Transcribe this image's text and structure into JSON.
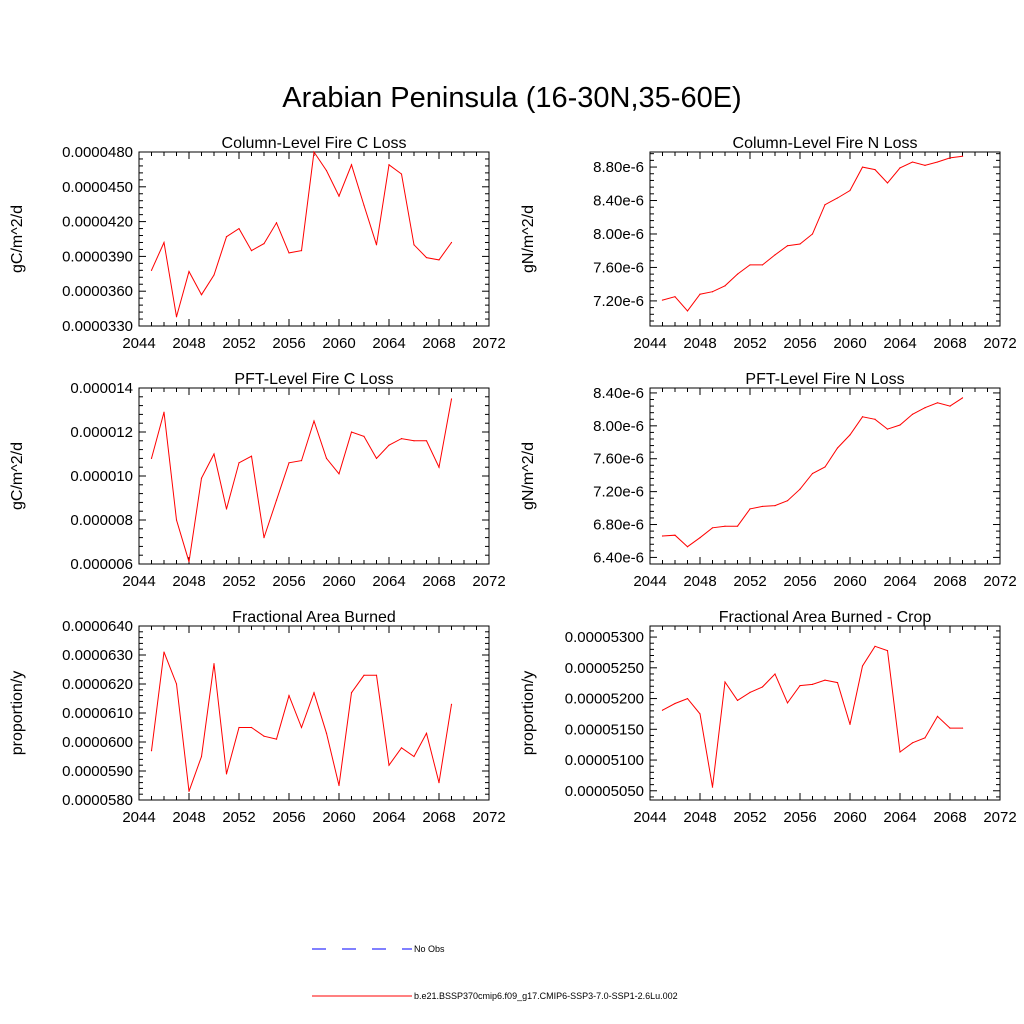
{
  "title": "Arabian Peninsula (16-30N,35-60E)",
  "colors": {
    "model": "#ff0000",
    "obs": "#0000ff",
    "axis": "#000000"
  },
  "legend": {
    "obs_label": "No Obs",
    "model_label": "b.e21.BSSP370cmip6.f09_g17.CMIP6-SSP3-7.0-SSP1-2.6Lu.002"
  },
  "chart_data": [
    {
      "type": "line",
      "title": "Column-Level Fire C Loss",
      "ylabel": "gC/m^2/d",
      "xlim": [
        2044,
        2072
      ],
      "x_ticks": [
        "2044",
        "2048",
        "2052",
        "2056",
        "2060",
        "2064",
        "2068",
        "2072"
      ],
      "ylim": [
        3.3e-05,
        4.8e-05
      ],
      "y_ticks": [
        "0.0000330",
        "0.0000360",
        "0.0000390",
        "0.0000420",
        "0.0000450",
        "0.0000480"
      ],
      "x": [
        2045,
        2046,
        2047,
        2048,
        2049,
        2050,
        2051,
        2052,
        2053,
        2054,
        2055,
        2056,
        2057,
        2058,
        2059,
        2060,
        2061,
        2062,
        2063,
        2064,
        2065,
        2066,
        2067,
        2068,
        2069
      ],
      "series": [
        {
          "values": [
            3.78e-05,
            4.02e-05,
            3.38e-05,
            3.77e-05,
            3.57e-05,
            3.74e-05,
            4.07e-05,
            4.14e-05,
            3.95e-05,
            4.01e-05,
            4.19e-05,
            3.93e-05,
            3.95e-05,
            4.8e-05,
            4.64e-05,
            4.42e-05,
            4.69e-05,
            4.34e-05,
            4e-05,
            4.69e-05,
            4.61e-05,
            4e-05,
            3.89e-05,
            3.87e-05,
            4.02e-05
          ]
        }
      ]
    },
    {
      "type": "line",
      "title": "Column-Level Fire N Loss",
      "ylabel": "gN/m^2/d",
      "xlim": [
        2044,
        2072
      ],
      "x_ticks": [
        "2044",
        "2048",
        "2052",
        "2056",
        "2060",
        "2064",
        "2068",
        "2072"
      ],
      "ylim": [
        6.9e-06,
        8.98e-06
      ],
      "y_ticks": [
        "7.20e-6",
        "7.60e-6",
        "8.00e-6",
        "8.40e-6",
        "8.80e-6"
      ],
      "y_tick_values": [
        7.2e-06,
        7.6e-06,
        8e-06,
        8.4e-06,
        8.8e-06
      ],
      "x": [
        2045,
        2046,
        2047,
        2048,
        2049,
        2050,
        2051,
        2052,
        2053,
        2054,
        2055,
        2056,
        2057,
        2058,
        2059,
        2060,
        2061,
        2062,
        2063,
        2064,
        2065,
        2066,
        2067,
        2068,
        2069
      ],
      "series": [
        {
          "values": [
            7.21e-06,
            7.25e-06,
            7.08e-06,
            7.28e-06,
            7.31e-06,
            7.38e-06,
            7.52e-06,
            7.63e-06,
            7.63e-06,
            7.75e-06,
            7.86e-06,
            7.88e-06,
            8e-06,
            8.35e-06,
            8.43e-06,
            8.52e-06,
            8.8e-06,
            8.77e-06,
            8.61e-06,
            8.79e-06,
            8.86e-06,
            8.82e-06,
            8.86e-06,
            8.91e-06,
            8.93e-06
          ]
        }
      ]
    },
    {
      "type": "line",
      "title": "PFT-Level Fire C Loss",
      "ylabel": "gC/m^2/d",
      "xlim": [
        2044,
        2072
      ],
      "x_ticks": [
        "2044",
        "2048",
        "2052",
        "2056",
        "2060",
        "2064",
        "2068",
        "2072"
      ],
      "ylim": [
        6e-06,
        1.4e-05
      ],
      "y_ticks": [
        "0.000006",
        "0.000008",
        "0.000010",
        "0.000012",
        "0.000014"
      ],
      "x": [
        2045,
        2046,
        2047,
        2048,
        2049,
        2050,
        2051,
        2052,
        2053,
        2054,
        2055,
        2056,
        2057,
        2058,
        2059,
        2060,
        2061,
        2062,
        2063,
        2064,
        2065,
        2066,
        2067,
        2068,
        2069
      ],
      "series": [
        {
          "values": [
            1.08e-05,
            1.29e-05,
            8e-06,
            6.1e-06,
            9.9e-06,
            1.1e-05,
            8.5e-06,
            1.06e-05,
            1.09e-05,
            7.2e-06,
            8.9e-06,
            1.06e-05,
            1.07e-05,
            1.25e-05,
            1.08e-05,
            1.01e-05,
            1.2e-05,
            1.18e-05,
            1.08e-05,
            1.14e-05,
            1.17e-05,
            1.16e-05,
            1.16e-05,
            1.04e-05,
            1.35e-05
          ]
        }
      ]
    },
    {
      "type": "line",
      "title": "PFT-Level Fire N Loss",
      "ylabel": "gN/m^2/d",
      "xlim": [
        2044,
        2072
      ],
      "x_ticks": [
        "2044",
        "2048",
        "2052",
        "2056",
        "2060",
        "2064",
        "2068",
        "2072"
      ],
      "ylim": [
        6.32e-06,
        8.46e-06
      ],
      "y_ticks": [
        "6.40e-6",
        "6.80e-6",
        "7.20e-6",
        "7.60e-6",
        "8.00e-6",
        "8.40e-6"
      ],
      "y_tick_values": [
        6.4e-06,
        6.8e-06,
        7.2e-06,
        7.6e-06,
        8e-06,
        8.4e-06
      ],
      "x": [
        2045,
        2046,
        2047,
        2048,
        2049,
        2050,
        2051,
        2052,
        2053,
        2054,
        2055,
        2056,
        2057,
        2058,
        2059,
        2060,
        2061,
        2062,
        2063,
        2064,
        2065,
        2066,
        2067,
        2068,
        2069
      ],
      "series": [
        {
          "values": [
            6.66e-06,
            6.67e-06,
            6.53e-06,
            6.64e-06,
            6.76e-06,
            6.78e-06,
            6.78e-06,
            6.99e-06,
            7.02e-06,
            7.03e-06,
            7.09e-06,
            7.23e-06,
            7.42e-06,
            7.5e-06,
            7.73e-06,
            7.89e-06,
            8.11e-06,
            8.08e-06,
            7.96e-06,
            8.01e-06,
            8.14e-06,
            8.22e-06,
            8.28e-06,
            8.24e-06,
            8.34e-06
          ]
        }
      ]
    },
    {
      "type": "line",
      "title": "Fractional Area Burned",
      "ylabel": "proportion/y",
      "xlim": [
        2044,
        2072
      ],
      "x_ticks": [
        "2044",
        "2048",
        "2052",
        "2056",
        "2060",
        "2064",
        "2068",
        "2072"
      ],
      "ylim": [
        5.8e-05,
        6.4e-05
      ],
      "y_ticks": [
        "0.0000580",
        "0.0000590",
        "0.0000600",
        "0.0000610",
        "0.0000620",
        "0.0000630",
        "0.0000640"
      ],
      "x": [
        2045,
        2046,
        2047,
        2048,
        2049,
        2050,
        2051,
        2052,
        2053,
        2054,
        2055,
        2056,
        2057,
        2058,
        2059,
        2060,
        2061,
        2062,
        2063,
        2064,
        2065,
        2066,
        2067,
        2068,
        2069
      ],
      "series": [
        {
          "values": [
            5.97e-05,
            6.31e-05,
            6.2e-05,
            5.83e-05,
            5.95e-05,
            6.27e-05,
            5.89e-05,
            6.05e-05,
            6.05e-05,
            6.02e-05,
            6.01e-05,
            6.16e-05,
            6.05e-05,
            6.17e-05,
            6.03e-05,
            5.85e-05,
            6.17e-05,
            6.23e-05,
            6.23e-05,
            5.92e-05,
            5.98e-05,
            5.95e-05,
            6.03e-05,
            5.86e-05,
            6.13e-05
          ]
        }
      ]
    },
    {
      "type": "line",
      "title": "Fractional Area Burned - Crop",
      "ylabel": "proportion/y",
      "xlim": [
        2044,
        2072
      ],
      "x_ticks": [
        "2044",
        "2048",
        "2052",
        "2056",
        "2060",
        "2064",
        "2068",
        "2072"
      ],
      "ylim": [
        5.035e-05,
        5.318e-05
      ],
      "y_ticks": [
        "0.00005050",
        "0.00005100",
        "0.00005150",
        "0.00005200",
        "0.00005250",
        "0.00005300"
      ],
      "y_tick_values": [
        5.05e-05,
        5.1e-05,
        5.15e-05,
        5.2e-05,
        5.25e-05,
        5.3e-05
      ],
      "x": [
        2045,
        2046,
        2047,
        2048,
        2049,
        2050,
        2051,
        2052,
        2053,
        2054,
        2055,
        2056,
        2057,
        2058,
        2059,
        2060,
        2061,
        2062,
        2063,
        2064,
        2065,
        2066,
        2067,
        2068,
        2069
      ],
      "series": [
        {
          "values": [
            5.181e-05,
            5.192e-05,
            5.2e-05,
            5.175e-05,
            5.056e-05,
            5.227e-05,
            5.197e-05,
            5.21e-05,
            5.219e-05,
            5.24e-05,
            5.193e-05,
            5.221e-05,
            5.223e-05,
            5.23e-05,
            5.226e-05,
            5.158e-05,
            5.253e-05,
            5.285e-05,
            5.278e-05,
            5.113e-05,
            5.128e-05,
            5.136e-05,
            5.171e-05,
            5.152e-05,
            5.152e-05
          ]
        }
      ]
    }
  ]
}
